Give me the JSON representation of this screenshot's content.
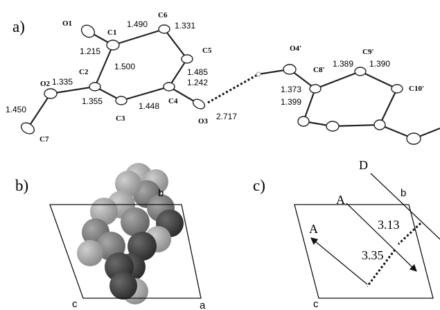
{
  "panel_a": {
    "label": "a)",
    "atoms": [
      "O1",
      "C1",
      "C6",
      "C5",
      "C4",
      "O3",
      "C3",
      "C2",
      "O2",
      "C7",
      "O4'",
      "C8'",
      "C9'",
      "C10'"
    ],
    "bond_lengths": [
      "1.215",
      "1.490",
      "1.331",
      "1.500",
      "1.485",
      "1.242",
      "1.335",
      "1.355",
      "1.448",
      "1.450",
      "2.717",
      "1.389",
      "1.390",
      "1.373",
      "1.399"
    ]
  },
  "panel_b": {
    "label": "b)",
    "axes": [
      "b",
      "c",
      "a"
    ]
  },
  "panel_c": {
    "label": "c)",
    "axes": [
      "b",
      "c"
    ],
    "stacks": [
      "D",
      "A",
      "A"
    ],
    "distances": [
      "3.13",
      "3.35"
    ]
  }
}
